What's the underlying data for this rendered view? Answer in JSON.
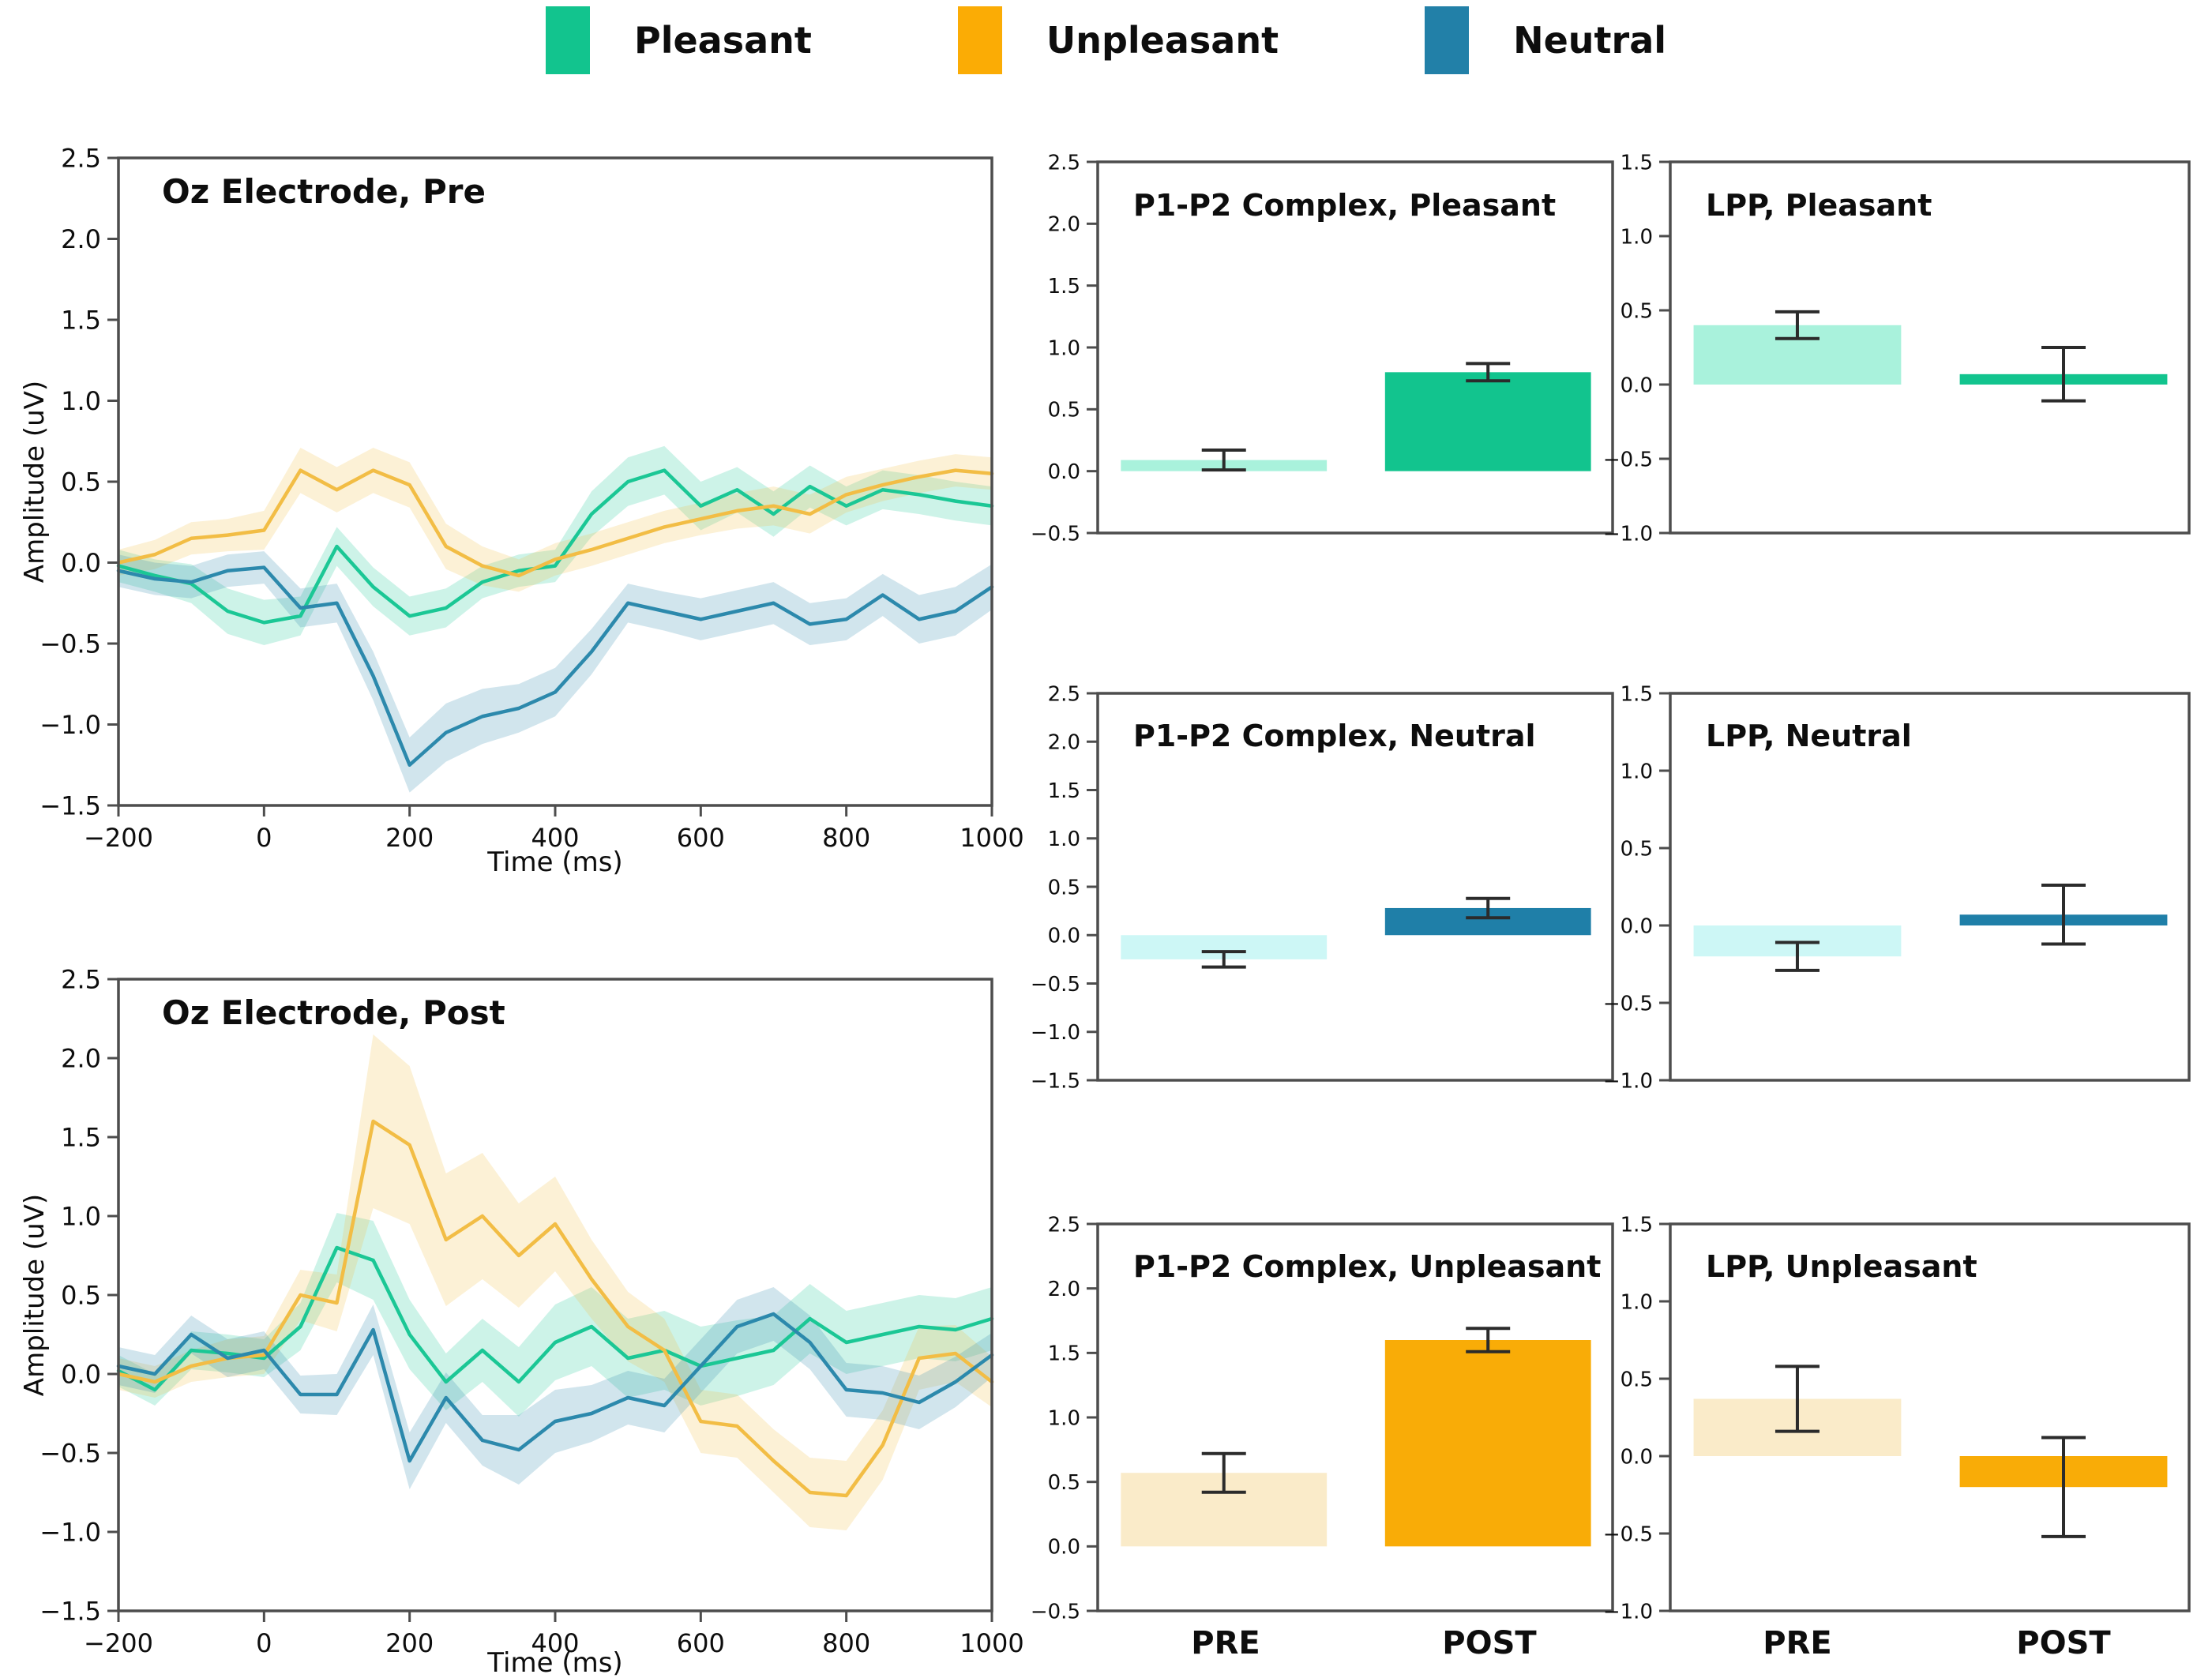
{
  "legend": {
    "items": [
      {
        "label": "Pleasant",
        "color": "#12C48E"
      },
      {
        "label": "Unpleasant",
        "color": "#FBAC05"
      },
      {
        "label": "Neutral",
        "color": "#2280A8"
      }
    ]
  },
  "colors": {
    "axis": "#4D4D4D",
    "error_bar": "#2B2B2B",
    "pleasant_line": "#1BC795",
    "unpleasant_line": "#F2BD45",
    "neutral_line": "#2C89AC",
    "pleasant_bar": "#12C48E",
    "pleasant_bar_pale": "#A9F2DC",
    "neutral_bar": "#1F7FA8",
    "neutral_bar_pale": "#CDF7F6",
    "unpleasant_bar": "#F9AC07",
    "unpleasant_bar_pale": "#FAEBC9"
  },
  "chart_data": [
    {
      "id": "oz-pre",
      "type": "line",
      "title": "Oz Electrode, Pre",
      "xlabel": "Time (ms)",
      "ylabel": "Amplitude (uV)",
      "xlim": [
        -200,
        1000
      ],
      "ylim": [
        -1.5,
        2.5
      ],
      "xticks": [
        -200,
        0,
        200,
        400,
        600,
        800,
        1000
      ],
      "yticks": [
        2.5,
        2.0,
        1.5,
        1.0,
        0.5,
        0.0,
        -0.5,
        -1.0,
        -1.5
      ],
      "x": [
        -200,
        -150,
        -100,
        -50,
        0,
        50,
        100,
        150,
        200,
        250,
        300,
        350,
        400,
        450,
        500,
        550,
        600,
        650,
        700,
        750,
        800,
        850,
        900,
        950,
        1000
      ],
      "series": [
        {
          "name": "Pleasant",
          "color": "#1BC795",
          "values": [
            -0.02,
            -0.08,
            -0.13,
            -0.3,
            -0.37,
            -0.33,
            0.1,
            -0.15,
            -0.33,
            -0.28,
            -0.12,
            -0.05,
            -0.02,
            0.3,
            0.5,
            0.57,
            0.35,
            0.45,
            0.3,
            0.47,
            0.35,
            0.45,
            0.42,
            0.38,
            0.35
          ],
          "band": [
            0.1,
            0.1,
            0.12,
            0.14,
            0.14,
            0.12,
            0.12,
            0.12,
            0.12,
            0.12,
            0.1,
            0.1,
            0.1,
            0.14,
            0.15,
            0.15,
            0.15,
            0.14,
            0.14,
            0.13,
            0.12,
            0.12,
            0.12,
            0.12,
            0.12
          ]
        },
        {
          "name": "Unpleasant",
          "color": "#F2BD45",
          "values": [
            0.0,
            0.05,
            0.15,
            0.17,
            0.2,
            0.57,
            0.45,
            0.57,
            0.48,
            0.1,
            -0.02,
            -0.08,
            0.02,
            0.08,
            0.15,
            0.22,
            0.27,
            0.32,
            0.35,
            0.3,
            0.42,
            0.48,
            0.53,
            0.57,
            0.55
          ],
          "band": [
            0.08,
            0.09,
            0.1,
            0.1,
            0.12,
            0.14,
            0.14,
            0.14,
            0.14,
            0.14,
            0.12,
            0.1,
            0.1,
            0.1,
            0.1,
            0.1,
            0.1,
            0.11,
            0.12,
            0.12,
            0.11,
            0.1,
            0.1,
            0.1,
            0.1
          ]
        },
        {
          "name": "Neutral",
          "color": "#2C89AC",
          "values": [
            -0.05,
            -0.1,
            -0.12,
            -0.05,
            -0.03,
            -0.28,
            -0.25,
            -0.7,
            -1.25,
            -1.05,
            -0.95,
            -0.9,
            -0.8,
            -0.55,
            -0.25,
            -0.3,
            -0.35,
            -0.3,
            -0.25,
            -0.38,
            -0.35,
            -0.2,
            -0.35,
            -0.3,
            -0.15
          ],
          "band": [
            0.1,
            0.1,
            0.1,
            0.1,
            0.1,
            0.12,
            0.12,
            0.15,
            0.17,
            0.18,
            0.17,
            0.15,
            0.15,
            0.14,
            0.12,
            0.12,
            0.13,
            0.13,
            0.13,
            0.13,
            0.13,
            0.13,
            0.15,
            0.15,
            0.14
          ]
        }
      ]
    },
    {
      "id": "oz-post",
      "type": "line",
      "title": "Oz Electrode, Post",
      "xlabel": "Time (ms)",
      "ylabel": "Amplitude (uV)",
      "xlim": [
        -200,
        1000
      ],
      "ylim": [
        -1.5,
        2.5
      ],
      "xticks": [
        -200,
        0,
        200,
        400,
        600,
        800,
        1000
      ],
      "yticks": [
        2.5,
        2.0,
        1.5,
        1.0,
        0.5,
        0.0,
        -0.5,
        -1.0,
        -1.5
      ],
      "x": [
        -200,
        -150,
        -100,
        -50,
        0,
        50,
        100,
        150,
        200,
        250,
        300,
        350,
        400,
        450,
        500,
        550,
        600,
        650,
        700,
        750,
        800,
        850,
        900,
        950,
        1000
      ],
      "series": [
        {
          "name": "Pleasant",
          "color": "#1BC795",
          "values": [
            0.02,
            -0.1,
            0.15,
            0.13,
            0.1,
            0.3,
            0.8,
            0.72,
            0.25,
            -0.05,
            0.15,
            -0.05,
            0.2,
            0.3,
            0.1,
            0.15,
            0.05,
            0.1,
            0.15,
            0.35,
            0.2,
            0.25,
            0.3,
            0.28,
            0.35
          ],
          "band": [
            0.1,
            0.1,
            0.12,
            0.12,
            0.12,
            0.15,
            0.22,
            0.25,
            0.22,
            0.18,
            0.2,
            0.22,
            0.24,
            0.25,
            0.25,
            0.25,
            0.25,
            0.24,
            0.22,
            0.22,
            0.2,
            0.2,
            0.2,
            0.2,
            0.2
          ]
        },
        {
          "name": "Unpleasant",
          "color": "#F2BD45",
          "values": [
            0.0,
            -0.05,
            0.05,
            0.1,
            0.12,
            0.5,
            0.45,
            1.6,
            1.45,
            0.85,
            1.0,
            0.75,
            0.95,
            0.6,
            0.3,
            0.15,
            -0.3,
            -0.33,
            -0.55,
            -0.75,
            -0.77,
            -0.45,
            0.1,
            0.13,
            -0.05
          ],
          "band": [
            0.1,
            0.1,
            0.1,
            0.12,
            0.12,
            0.16,
            0.18,
            0.55,
            0.5,
            0.42,
            0.4,
            0.33,
            0.3,
            0.25,
            0.22,
            0.2,
            0.2,
            0.2,
            0.2,
            0.22,
            0.22,
            0.22,
            0.2,
            0.18,
            0.16
          ]
        },
        {
          "name": "Neutral",
          "color": "#2C89AC",
          "values": [
            0.05,
            0.0,
            0.25,
            0.1,
            0.15,
            -0.13,
            -0.13,
            0.28,
            -0.55,
            -0.15,
            -0.42,
            -0.48,
            -0.3,
            -0.25,
            -0.15,
            -0.2,
            0.05,
            0.3,
            0.38,
            0.2,
            -0.1,
            -0.12,
            -0.18,
            -0.05,
            0.12
          ],
          "band": [
            0.12,
            0.12,
            0.12,
            0.12,
            0.12,
            0.12,
            0.13,
            0.16,
            0.18,
            0.16,
            0.16,
            0.22,
            0.2,
            0.18,
            0.17,
            0.17,
            0.17,
            0.17,
            0.17,
            0.17,
            0.17,
            0.17,
            0.17,
            0.16,
            0.14
          ]
        }
      ]
    },
    {
      "id": "p1p2-pleasant",
      "type": "bar",
      "title": "P1-P2 Complex, Pleasant",
      "ylim": [
        -0.5,
        2.5
      ],
      "yticks": [
        2.5,
        2.0,
        1.5,
        1.0,
        0.5,
        0.0,
        -0.5
      ],
      "categories": [
        "PRE",
        "POST"
      ],
      "bars": [
        {
          "category": "PRE",
          "value": 0.09,
          "error": 0.08,
          "color": "#A9F2DC"
        },
        {
          "category": "POST",
          "value": 0.8,
          "error": 0.07,
          "color": "#12C48E"
        }
      ]
    },
    {
      "id": "lpp-pleasant",
      "type": "bar",
      "title": "LPP, Pleasant",
      "ylim": [
        -1.0,
        1.5
      ],
      "yticks": [
        1.5,
        1.0,
        0.5,
        0.0,
        -0.5,
        -1.0
      ],
      "categories": [
        "PRE",
        "POST"
      ],
      "bars": [
        {
          "category": "PRE",
          "value": 0.4,
          "error": 0.09,
          "color": "#A9F2DC"
        },
        {
          "category": "POST",
          "value": 0.07,
          "error": 0.18,
          "color": "#12C48E"
        }
      ]
    },
    {
      "id": "p1p2-neutral",
      "type": "bar",
      "title": "P1-P2 Complex, Neutral",
      "ylim": [
        -1.5,
        2.5
      ],
      "yticks": [
        2.5,
        2.0,
        1.5,
        1.0,
        0.5,
        0.0,
        -0.5,
        -1.0,
        -1.5
      ],
      "categories": [
        "PRE",
        "POST"
      ],
      "bars": [
        {
          "category": "PRE",
          "value": -0.25,
          "error": 0.08,
          "color": "#CDF7F6"
        },
        {
          "category": "POST",
          "value": 0.28,
          "error": 0.1,
          "color": "#1F7FA8"
        }
      ]
    },
    {
      "id": "lpp-neutral",
      "type": "bar",
      "title": "LPP, Neutral",
      "ylim": [
        -1.0,
        1.5
      ],
      "yticks": [
        1.5,
        1.0,
        0.5,
        0.0,
        -0.5,
        -1.0
      ],
      "categories": [
        "PRE",
        "POST"
      ],
      "bars": [
        {
          "category": "PRE",
          "value": -0.2,
          "error": 0.09,
          "color": "#CDF7F6"
        },
        {
          "category": "POST",
          "value": 0.07,
          "error": 0.19,
          "color": "#1F7FA8"
        }
      ]
    },
    {
      "id": "p1p2-unpleasant",
      "type": "bar",
      "title": "P1-P2 Complex, Unpleasant",
      "ylim": [
        -0.5,
        2.5
      ],
      "yticks": [
        2.5,
        2.0,
        1.5,
        1.0,
        0.5,
        0.0,
        -0.5
      ],
      "categories": [
        "PRE",
        "POST"
      ],
      "bars": [
        {
          "category": "PRE",
          "value": 0.57,
          "error": 0.15,
          "color": "#FAEBC9"
        },
        {
          "category": "POST",
          "value": 1.6,
          "error": 0.09,
          "color": "#F9AC07"
        }
      ]
    },
    {
      "id": "lpp-unpleasant",
      "type": "bar",
      "title": "LPP, Unpleasant",
      "ylim": [
        -1.0,
        1.5
      ],
      "yticks": [
        1.5,
        1.0,
        0.5,
        0.0,
        -0.5,
        -1.0
      ],
      "categories": [
        "PRE",
        "POST"
      ],
      "bars": [
        {
          "category": "PRE",
          "value": 0.37,
          "error": 0.21,
          "color": "#FAEBC9"
        },
        {
          "category": "POST",
          "value": -0.2,
          "error": 0.32,
          "color": "#F9AC07"
        }
      ]
    }
  ]
}
